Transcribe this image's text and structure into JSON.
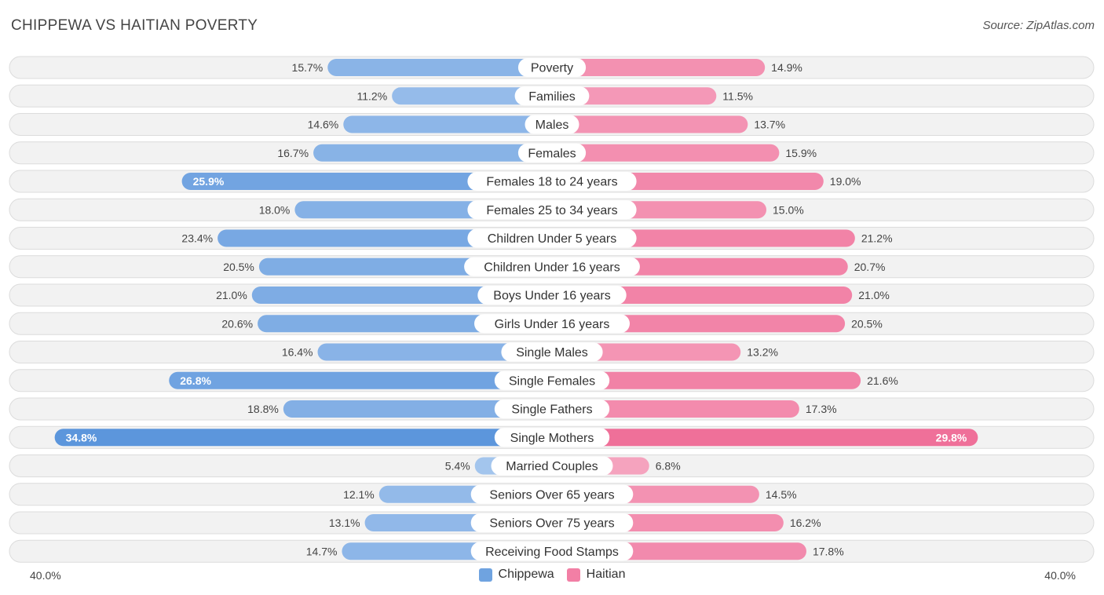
{
  "title": "CHIPPEWA VS HAITIAN POVERTY",
  "source": "Source: ZipAtlas.com",
  "axis": {
    "left_label": "40.0%",
    "right_label": "40.0%"
  },
  "legend": [
    {
      "name": "Chippewa",
      "color": "#6fa3e0"
    },
    {
      "name": "Haitian",
      "color": "#f27fa5"
    }
  ],
  "chart_data": {
    "type": "bar",
    "orientation": "horizontal-diverging",
    "title": "CHIPPEWA VS HAITIAN POVERTY",
    "xlim": [
      0,
      40
    ],
    "unit": "%",
    "categories": [
      "Poverty",
      "Families",
      "Males",
      "Females",
      "Females 18 to 24 years",
      "Females 25 to 34 years",
      "Children Under 5 years",
      "Children Under 16 years",
      "Boys Under 16 years",
      "Girls Under 16 years",
      "Single Males",
      "Single Females",
      "Single Fathers",
      "Single Mothers",
      "Married Couples",
      "Seniors Over 65 years",
      "Seniors Over 75 years",
      "Receiving Food Stamps"
    ],
    "series": [
      {
        "name": "Chippewa",
        "color": "#6fa3e0",
        "values": [
          15.7,
          11.2,
          14.6,
          16.7,
          25.9,
          18.0,
          23.4,
          20.5,
          21.0,
          20.6,
          16.4,
          26.8,
          18.8,
          34.8,
          5.4,
          12.1,
          13.1,
          14.7
        ],
        "labels": [
          "15.7%",
          "11.2%",
          "14.6%",
          "16.7%",
          "25.9%",
          "18.0%",
          "23.4%",
          "20.5%",
          "21.0%",
          "20.6%",
          "16.4%",
          "26.8%",
          "18.8%",
          "34.8%",
          "5.4%",
          "12.1%",
          "13.1%",
          "14.7%"
        ]
      },
      {
        "name": "Haitian",
        "color": "#f27fa5",
        "values": [
          14.9,
          11.5,
          13.7,
          15.9,
          19.0,
          15.0,
          21.2,
          20.7,
          21.0,
          20.5,
          13.2,
          21.6,
          17.3,
          29.8,
          6.8,
          14.5,
          16.2,
          17.8
        ],
        "labels": [
          "14.9%",
          "11.5%",
          "13.7%",
          "15.9%",
          "19.0%",
          "15.0%",
          "21.2%",
          "20.7%",
          "21.0%",
          "20.5%",
          "13.2%",
          "21.6%",
          "17.3%",
          "29.8%",
          "6.8%",
          "14.5%",
          "16.2%",
          "17.8%"
        ]
      }
    ]
  }
}
